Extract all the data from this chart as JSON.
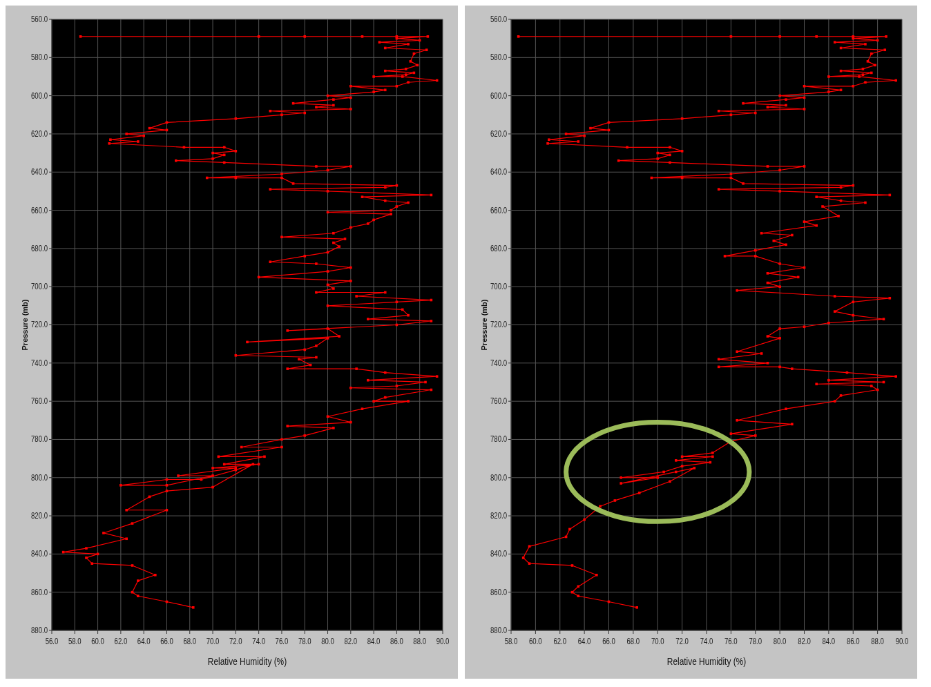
{
  "chart_data": [
    {
      "type": "line",
      "xlabel": "Relative Humidity (%)",
      "ylabel": "Pressure (mb)",
      "xlim": [
        56,
        90
      ],
      "ylim": [
        880,
        560
      ],
      "xticks": [
        {
          "value": 56,
          "label": "56.0"
        },
        {
          "value": 58,
          "label": "58.0"
        },
        {
          "value": 60,
          "label": "60.0"
        },
        {
          "value": 62,
          "label": "62.0"
        },
        {
          "value": 64,
          "label": "64.0"
        },
        {
          "value": 66,
          "label": "66.0"
        },
        {
          "value": 68,
          "label": "68.0"
        },
        {
          "value": 70,
          "label": "70.0"
        },
        {
          "value": 72,
          "label": "72.0"
        },
        {
          "value": 74,
          "label": "74.0"
        },
        {
          "value": 76,
          "label": "76.0"
        },
        {
          "value": 78,
          "label": "78.0"
        },
        {
          "value": 80,
          "label": "80.0"
        },
        {
          "value": 82,
          "label": "82.0"
        },
        {
          "value": 84,
          "label": "84.0"
        },
        {
          "value": 86,
          "label": "86.0"
        },
        {
          "value": 88,
          "label": "88.0"
        },
        {
          "value": 90,
          "label": "90.0"
        }
      ],
      "yticks": [
        {
          "value": 560,
          "label": "560.0"
        },
        {
          "value": 580,
          "label": "580.0"
        },
        {
          "value": 600,
          "label": "600.0"
        },
        {
          "value": 620,
          "label": "620.0"
        },
        {
          "value": 640,
          "label": "640.0"
        },
        {
          "value": 660,
          "label": "660.0"
        },
        {
          "value": 680,
          "label": "680.0"
        },
        {
          "value": 700,
          "label": "700.0"
        },
        {
          "value": 720,
          "label": "720.0"
        },
        {
          "value": 740,
          "label": "740.0"
        },
        {
          "value": 760,
          "label": "760.0"
        },
        {
          "value": 780,
          "label": "780.0"
        },
        {
          "value": 800,
          "label": "800.0"
        },
        {
          "value": 820,
          "label": "820.0"
        },
        {
          "value": 840,
          "label": "840.0"
        },
        {
          "value": 860,
          "label": "860.0"
        },
        {
          "value": 880,
          "label": "880.0"
        }
      ],
      "grid": true,
      "marker": "square",
      "line_style": "solid",
      "series": [
        {
          "color": "#ff0000",
          "x": [
            58.5,
            74,
            78,
            83,
            86,
            88.7,
            86,
            88,
            84.5,
            87,
            85,
            88.6,
            87.5,
            87.2,
            87.8,
            86.8,
            85,
            87.5,
            86.8,
            84,
            86.5,
            89.5,
            87,
            86,
            82,
            85,
            84,
            80,
            82,
            80.5,
            77,
            80.5,
            79,
            82,
            75,
            78,
            76,
            72,
            66,
            64.5,
            66,
            62.5,
            64,
            61.1,
            63.5,
            61,
            67.5,
            71,
            72,
            70,
            71,
            70,
            66.8,
            71,
            79,
            82,
            80,
            76,
            69.5,
            72,
            76,
            77,
            86,
            85,
            75,
            80,
            89,
            83,
            85,
            87,
            86,
            85.5,
            80,
            85.5,
            84,
            83.5,
            82,
            80.5,
            76,
            81.5,
            80.5,
            81,
            80,
            78,
            75,
            79,
            82,
            80,
            74,
            82,
            80,
            80.5,
            79,
            85,
            82.5,
            89,
            86,
            80,
            86.5,
            87,
            83.5,
            89,
            86,
            76.5,
            80,
            81,
            73,
            80,
            79,
            78,
            72,
            79,
            77.5,
            78.5,
            76.5,
            82.5,
            85,
            89.5,
            83.5,
            88.5,
            86,
            82,
            89,
            85,
            84,
            87,
            83,
            80,
            82,
            76.5,
            80.5,
            78,
            76,
            72.5,
            76,
            70.5,
            74.5,
            71,
            74,
            70,
            72,
            67,
            70,
            66,
            62,
            66,
            69,
            72,
            73.5,
            70,
            66,
            64.5,
            62.5,
            66,
            63,
            60.5,
            62.5,
            59,
            57,
            60,
            59,
            59.5,
            63,
            65,
            63.5,
            63,
            63.5,
            66,
            68.3
          ],
          "values": [
            569,
            569,
            569,
            569,
            569,
            569,
            570,
            571,
            572,
            573,
            575,
            576,
            578,
            582,
            584,
            586,
            587,
            588,
            589,
            590,
            590,
            592,
            593,
            595,
            595,
            597,
            598,
            600,
            601,
            602,
            604,
            605,
            606,
            607,
            608,
            609,
            610,
            612,
            614,
            617,
            618,
            620,
            621,
            623,
            624,
            625,
            627,
            627,
            629,
            630,
            631,
            633,
            634,
            635,
            637,
            637,
            639,
            641,
            643,
            643,
            643,
            646,
            647,
            648,
            649,
            650,
            652,
            653,
            655,
            656,
            658,
            660,
            661,
            662,
            665,
            667,
            669,
            672,
            674,
            675,
            677,
            679,
            682,
            684,
            687,
            688,
            690,
            692,
            695,
            697,
            699,
            701,
            703,
            703,
            705,
            707,
            708,
            710,
            712,
            715,
            717,
            718,
            720,
            723,
            722,
            726,
            729,
            727,
            731,
            733,
            736,
            737,
            738,
            741,
            743,
            743,
            745,
            747,
            749,
            750,
            752,
            753,
            754,
            758,
            760,
            760,
            764,
            768,
            771,
            773,
            774,
            778,
            780,
            784,
            784,
            789,
            789,
            793,
            793,
            795,
            795,
            799,
            799,
            804,
            804,
            801,
            801,
            796,
            793,
            805,
            807,
            810,
            817,
            817,
            824,
            829,
            832,
            837,
            839,
            840,
            842,
            845,
            846,
            851,
            854,
            860,
            862,
            865,
            868
          ]
        }
      ]
    },
    {
      "type": "line",
      "xlabel": "Relative Humidity (%)",
      "ylabel": "Pressure (mb)",
      "xlim": [
        58,
        90
      ],
      "ylim": [
        880,
        560
      ],
      "xticks": [
        {
          "value": 58,
          "label": "58.0"
        },
        {
          "value": 60,
          "label": "60.0"
        },
        {
          "value": 62,
          "label": "62.0"
        },
        {
          "value": 64,
          "label": "64.0"
        },
        {
          "value": 66,
          "label": "66.0"
        },
        {
          "value": 68,
          "label": "68.0"
        },
        {
          "value": 70,
          "label": "70.0"
        },
        {
          "value": 72,
          "label": "72.0"
        },
        {
          "value": 74,
          "label": "74.0"
        },
        {
          "value": 76,
          "label": "76.0"
        },
        {
          "value": 78,
          "label": "78.0"
        },
        {
          "value": 80,
          "label": "80.0"
        },
        {
          "value": 82,
          "label": "82.0"
        },
        {
          "value": 84,
          "label": "84.0"
        },
        {
          "value": 86,
          "label": "86.0"
        },
        {
          "value": 88,
          "label": "88.0"
        },
        {
          "value": 90,
          "label": "90.0"
        }
      ],
      "yticks": [
        {
          "value": 560,
          "label": "560.0"
        },
        {
          "value": 580,
          "label": "580.0"
        },
        {
          "value": 600,
          "label": "600.0"
        },
        {
          "value": 620,
          "label": "620.0"
        },
        {
          "value": 640,
          "label": "640.0"
        },
        {
          "value": 660,
          "label": "660.0"
        },
        {
          "value": 680,
          "label": "680.0"
        },
        {
          "value": 700,
          "label": "700.0"
        },
        {
          "value": 720,
          "label": "720.0"
        },
        {
          "value": 740,
          "label": "740.0"
        },
        {
          "value": 760,
          "label": "760.0"
        },
        {
          "value": 780,
          "label": "780.0"
        },
        {
          "value": 800,
          "label": "800.0"
        },
        {
          "value": 820,
          "label": "820.0"
        },
        {
          "value": 840,
          "label": "840.0"
        },
        {
          "value": 860,
          "label": "860.0"
        },
        {
          "value": 880,
          "label": "880.0"
        }
      ],
      "grid": true,
      "marker": "square",
      "line_style": "solid",
      "series": [
        {
          "color": "#ff0000",
          "x": [
            58.6,
            76,
            80,
            83,
            86,
            88.7,
            86,
            88,
            84.5,
            87,
            85,
            88.6,
            87.5,
            87.2,
            87.8,
            86.8,
            85,
            87.5,
            86.8,
            84,
            86.5,
            89.5,
            87,
            86,
            82,
            85,
            84,
            80,
            82,
            80.5,
            77,
            80.5,
            79,
            82,
            75,
            78,
            76,
            72,
            66,
            64.5,
            66,
            62.5,
            64,
            61.1,
            63.5,
            61,
            67.5,
            71,
            72,
            70,
            71,
            70,
            66.8,
            71,
            79,
            82,
            80,
            76,
            69.5,
            72,
            76,
            77,
            86,
            85,
            75,
            80,
            89,
            83,
            85,
            87,
            83.5,
            84.8,
            82,
            83,
            78.5,
            81,
            79.5,
            80.5,
            78,
            75.5,
            78,
            80,
            82,
            79,
            81.5,
            79,
            80,
            76.5,
            84.5,
            89,
            86,
            84.5,
            86,
            88.5,
            84,
            82,
            80,
            79,
            80,
            76.5,
            78.5,
            75,
            79,
            75,
            80,
            81,
            85.5,
            89.5,
            84,
            88.5,
            83,
            87.5,
            88,
            85,
            84.5,
            80.5,
            76.5,
            81,
            76,
            78,
            76,
            74.5,
            72,
            74.5,
            71.5,
            74.3,
            72,
            70.5,
            67,
            70,
            67,
            71.5,
            73,
            71,
            68.5,
            66.5,
            65.3,
            64,
            62.8,
            62.5,
            59.5,
            59,
            59.5,
            63,
            65,
            63.5,
            63,
            63.5,
            66,
            68.3
          ],
          "values": [
            569,
            569,
            569,
            569,
            569,
            569,
            570,
            571,
            572,
            573,
            575,
            576,
            578,
            582,
            584,
            586,
            587,
            588,
            589,
            590,
            590,
            592,
            593,
            595,
            595,
            597,
            598,
            600,
            601,
            602,
            604,
            605,
            606,
            607,
            608,
            609,
            610,
            612,
            614,
            617,
            618,
            620,
            621,
            623,
            624,
            625,
            627,
            627,
            629,
            630,
            631,
            633,
            634,
            635,
            637,
            637,
            639,
            641,
            643,
            643,
            643,
            646,
            647,
            648,
            649,
            650,
            652,
            653,
            655,
            656,
            658,
            663,
            666,
            668,
            672,
            673,
            676,
            678,
            681,
            684,
            684,
            688,
            690,
            693,
            695,
            698,
            700,
            702,
            705,
            706,
            708,
            713,
            715,
            717,
            719,
            721,
            722,
            726,
            727,
            734,
            735,
            738,
            740,
            742,
            742,
            743,
            745,
            747,
            749,
            750,
            751,
            752,
            754,
            757,
            760,
            764,
            770,
            772,
            777,
            778,
            781,
            787,
            789,
            789,
            791,
            792,
            794,
            797,
            800,
            800,
            803,
            797,
            795,
            802,
            808,
            812,
            815,
            822,
            827,
            831,
            836,
            842,
            845,
            846,
            851,
            857,
            860,
            862,
            865,
            868
          ]
        }
      ]
    }
  ]
}
